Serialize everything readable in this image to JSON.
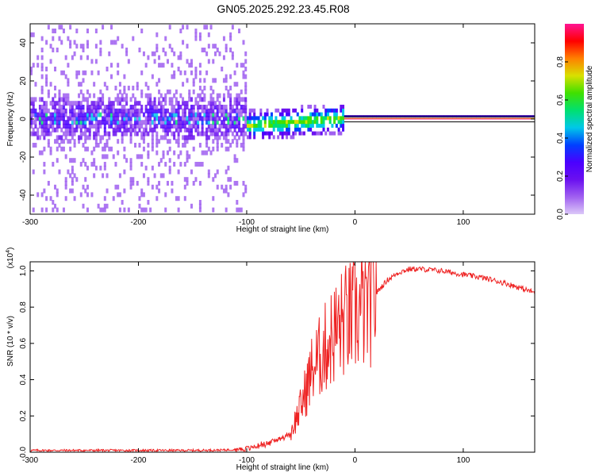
{
  "title": "GN05.2025.292.23.45.R08",
  "colors": {
    "snr_line": "#ee2222",
    "spectrogram_background": "#ffffff",
    "colorscale": [
      "#dcc8f8",
      "#a060f0",
      "#6a10f0",
      "#4a00ff",
      "#0040ff",
      "#00c8e8",
      "#00e070",
      "#40e000",
      "#d8e000",
      "#ff8000",
      "#ff0000",
      "#ff1493"
    ]
  },
  "chart_data": [
    {
      "type": "heatmap",
      "name": "spectrogram",
      "xlabel": "Height of straight line (km)",
      "ylabel": "Frequency (Hz)",
      "xlim": [
        -300,
        166
      ],
      "ylim": [
        -50,
        50
      ],
      "x_ticks": [
        "-300",
        "-200",
        "-100",
        "0",
        "100"
      ],
      "y_ticks": [
        "-40",
        "-20",
        "0",
        "20",
        "40"
      ],
      "grid": false,
      "colorbar": {
        "label": "Normalized spectral amplitude",
        "range": [
          0,
          1
        ],
        "ticks": [
          "0.0",
          "0.2",
          "0.4",
          "0.6",
          "0.8"
        ]
      },
      "features": [
        {
          "x_range": [
            -300,
            -100
          ],
          "frequency_spread_hz": 48,
          "amplitude": 0.25
        },
        {
          "x_range": [
            -100,
            -10
          ],
          "frequency_center_hz": -3,
          "amplitude": 0.55
        },
        {
          "x_range": [
            0,
            166
          ],
          "frequency_center_hz": 0,
          "amplitude": 1.0
        }
      ]
    },
    {
      "type": "line",
      "name": "snr",
      "xlabel": "Height of straight line (km)",
      "ylabel": "SNR (10 * v/v)",
      "y_multiplier": "(x10",
      "y_multiplier_exp": "4",
      "y_multiplier_close": ")",
      "xlim": [
        -300,
        166
      ],
      "ylim": [
        0,
        1.05
      ],
      "x_ticks": [
        "-300",
        "-200",
        "-100",
        "0",
        "100"
      ],
      "y_ticks": [
        "0.0",
        "0.2",
        "0.4",
        "0.6",
        "0.8",
        "1.0"
      ],
      "grid": false,
      "x": [
        -300,
        -250,
        -200,
        -150,
        -120,
        -100,
        -80,
        -60,
        -50,
        -40,
        -30,
        -20,
        -10,
        0,
        10,
        20,
        30,
        40,
        50,
        60,
        80,
        100,
        120,
        140,
        166
      ],
      "y": [
        0.01,
        0.01,
        0.01,
        0.01,
        0.012,
        0.02,
        0.05,
        0.1,
        0.25,
        0.45,
        0.55,
        0.65,
        0.72,
        0.75,
        0.8,
        0.88,
        0.95,
        0.99,
        1.01,
        1.01,
        1.0,
        0.98,
        0.96,
        0.93,
        0.88
      ]
    }
  ]
}
